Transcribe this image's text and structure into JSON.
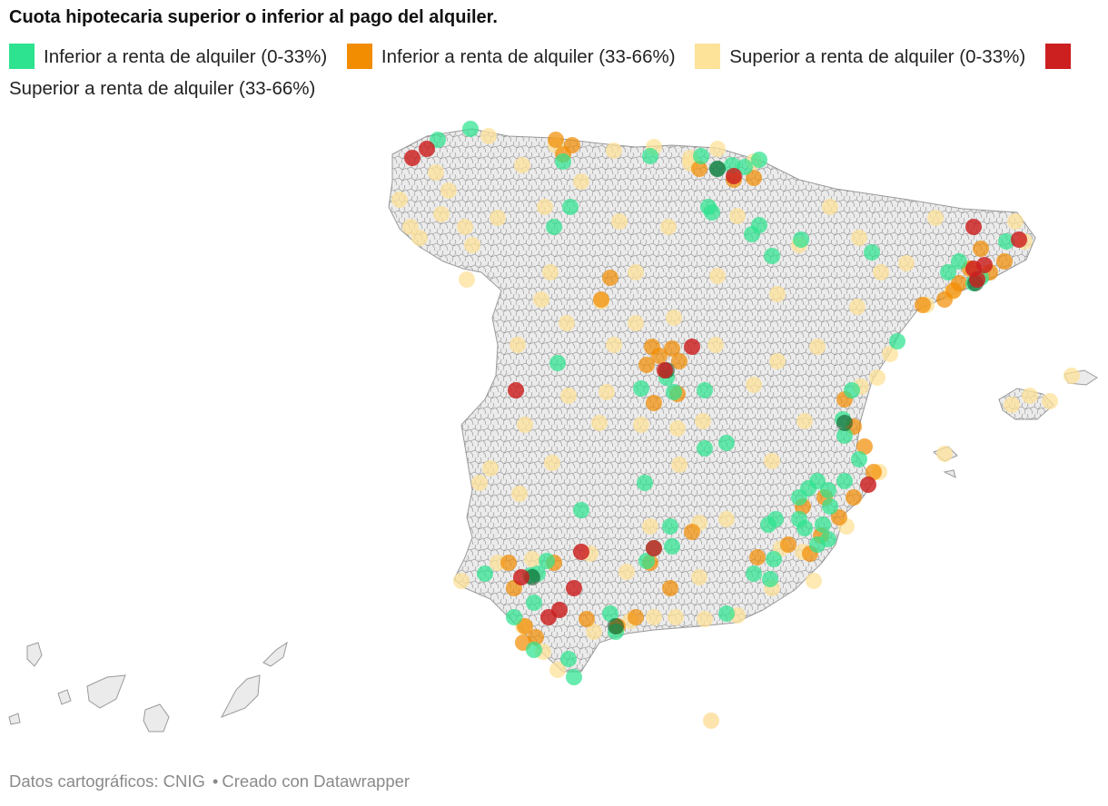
{
  "header": {
    "title": "Cuota hipotecaria superior o inferior al pago del alquiler."
  },
  "legend": {
    "items": [
      {
        "label": "Inferior a renta de alquiler (0-33%)",
        "color": "#2ee38f"
      },
      {
        "label": "Inferior a renta de alquiler (33-66%)",
        "color": "#f28c00"
      },
      {
        "label": "Superior a renta de alquiler (0-33%)",
        "color": "#fde29a"
      },
      {
        "label": "Superior a renta de alquiler (33-66%)",
        "color": "#cc1f1f"
      }
    ]
  },
  "map": {
    "land_color": "#ebebeb",
    "border_color": "#9a9a9a",
    "icon": "municipalities-map"
  },
  "footer": {
    "source": "Datos cartográficos: CNIG",
    "credit": "Creado con Datawrapper"
  }
}
